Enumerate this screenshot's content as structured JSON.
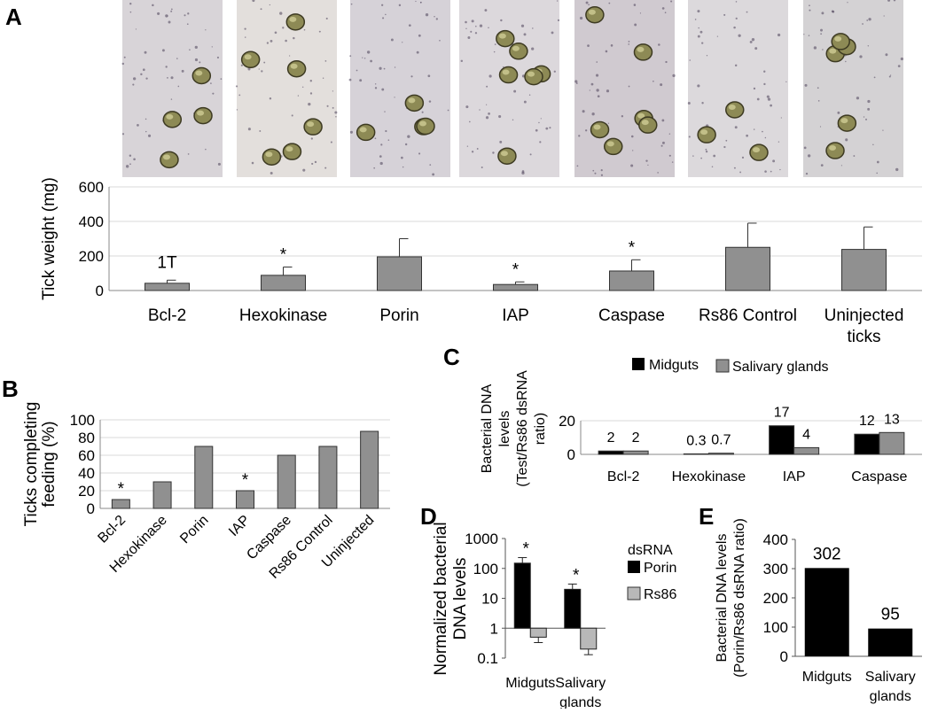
{
  "panels": {
    "a": "A",
    "b": "B",
    "c": "C",
    "d": "D",
    "e": "E"
  },
  "photos": [
    {
      "name": "Bcl-2",
      "bg": "#d8d4d8"
    },
    {
      "name": "Hexokinase",
      "bg": "#e3dfdc"
    },
    {
      "name": "Porin",
      "bg": "#d6d2d8"
    },
    {
      "name": "IAP",
      "bg": "#dcd8dc"
    },
    {
      "name": "Caspase",
      "bg": "#d0cad0"
    },
    {
      "name": "Rs86 Control",
      "bg": "#dcd9dc"
    },
    {
      "name": "Uninjected ticks",
      "bg": "#d4d2d4"
    }
  ],
  "chart_data": [
    {
      "id": "A",
      "type": "bar",
      "ylabel": "Tick weight (mg)",
      "ylim": [
        0,
        600
      ],
      "yticks": [
        0,
        200,
        400,
        600
      ],
      "grid": true,
      "categories": [
        [
          "Bcl-2"
        ],
        [
          "Hexokinase"
        ],
        [
          "Porin"
        ],
        [
          "IAP"
        ],
        [
          "Caspase"
        ],
        [
          "Rs86 Control"
        ],
        [
          "Uninjected",
          "ticks"
        ]
      ],
      "values": [
        42,
        88,
        195,
        35,
        113,
        250,
        238
      ],
      "errors": [
        18,
        48,
        105,
        15,
        65,
        140,
        130
      ],
      "annotations": [
        "1T",
        "*",
        "",
        "*",
        "*",
        "",
        ""
      ],
      "bar_color": "#909090"
    },
    {
      "id": "B",
      "type": "bar",
      "ylabel": [
        "Ticks completing",
        "feeding (%)"
      ],
      "ylim": [
        0,
        100
      ],
      "yticks": [
        0,
        20,
        40,
        60,
        80,
        100
      ],
      "grid": true,
      "categories": [
        "Bcl-2",
        "Hexokinase",
        "Porin",
        "IAP",
        "Caspase",
        "Rs86 Control",
        "Uninjected"
      ],
      "values": [
        10,
        30,
        70,
        20,
        60,
        70,
        87
      ],
      "annotations": [
        "*",
        "",
        "",
        "*",
        "",
        "",
        ""
      ],
      "bar_color": "#909090"
    },
    {
      "id": "C",
      "type": "bar",
      "ylabel": [
        "Bacterial DNA",
        "levels",
        "(Test/Rs86 dsRNA",
        "ratio)"
      ],
      "ylim": [
        0,
        20
      ],
      "yticks": [
        0,
        20
      ],
      "grid": true,
      "legend_position": "top",
      "categories": [
        "Bcl-2",
        "Hexokinase",
        "IAP",
        "Caspase"
      ],
      "series": [
        {
          "name": "Midguts",
          "color": "#000000",
          "values": [
            2,
            0.3,
            17,
            12
          ],
          "labels": [
            "2",
            "0.3",
            "17",
            "12"
          ]
        },
        {
          "name": "Salivary glands",
          "color": "#909090",
          "values": [
            2,
            0.7,
            4,
            13
          ],
          "labels": [
            "2",
            "0.7",
            "4",
            "13"
          ]
        }
      ]
    },
    {
      "id": "D",
      "type": "bar",
      "log_scale": true,
      "ylabel": [
        "Normalized bacterial",
        "DNA levels"
      ],
      "ylim": [
        0.1,
        1000
      ],
      "yticks": [
        "0.1",
        "1",
        "10",
        "100",
        "1000"
      ],
      "baseline": 1,
      "grid": false,
      "legend_title": "dsRNA",
      "categories": [
        [
          "Midguts"
        ],
        [
          "Salivary",
          "glands"
        ]
      ],
      "series": [
        {
          "name": "Porin",
          "color": "#000000",
          "values": [
            150,
            20
          ],
          "error_high": [
            230,
            30
          ]
        },
        {
          "name": "Rs86",
          "color": "#b8b8b8",
          "values": [
            0.5,
            0.2
          ],
          "error_low": [
            0.33,
            0.13
          ]
        }
      ],
      "annotations": [
        "*",
        "*"
      ]
    },
    {
      "id": "E",
      "type": "bar",
      "ylabel": [
        "Bacterial DNA levels",
        "(Porin/Rs86 dsRNA ratio)"
      ],
      "ylim": [
        0,
        400
      ],
      "yticks": [
        0,
        100,
        200,
        300,
        400
      ],
      "grid": false,
      "categories": [
        [
          "Midguts"
        ],
        [
          "Salivary",
          "glands"
        ]
      ],
      "values": [
        302,
        95
      ],
      "labels": [
        "302",
        "95"
      ],
      "bar_color": "#000000"
    }
  ]
}
